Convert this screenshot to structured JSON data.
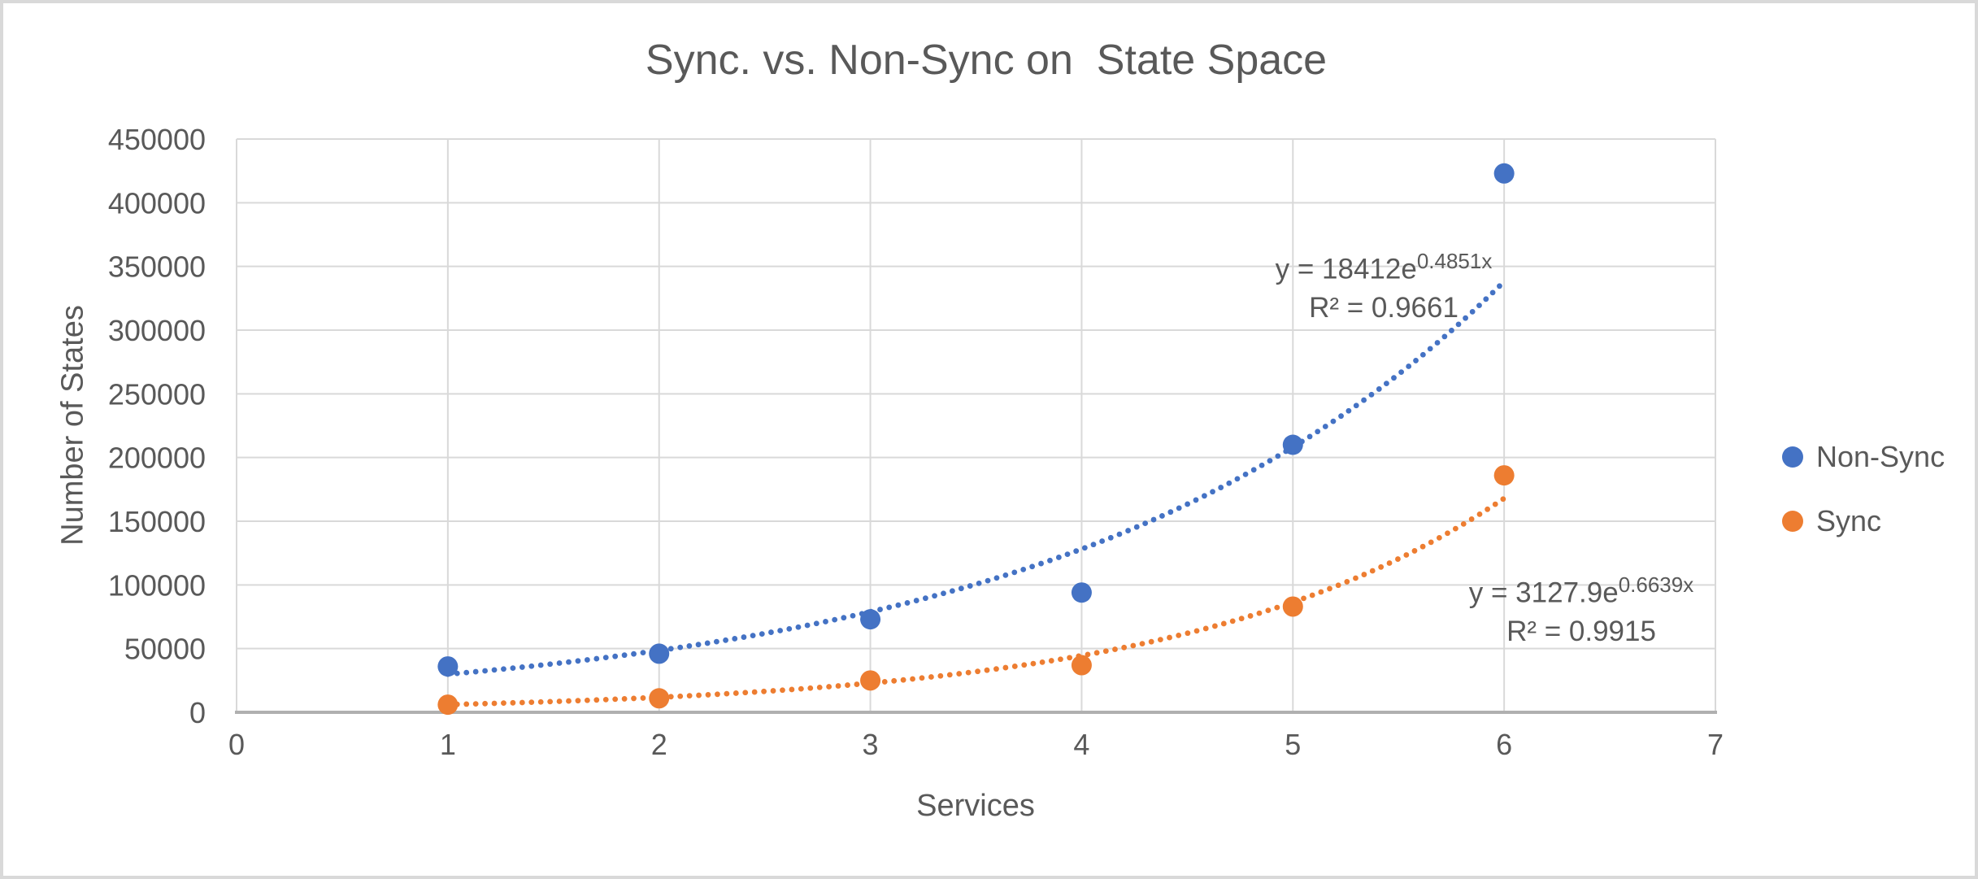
{
  "colors": {
    "gridline": "#d9d9d9",
    "axis_line": "#b0b0b0",
    "text": "#595959",
    "non_sync": "#4472C4",
    "sync": "#ED7D31"
  },
  "chart_data": {
    "type": "scatter",
    "title": "Sync. vs. Non-Sync on  State Space",
    "xlabel": "Services",
    "ylabel": "Number of States",
    "x": [
      1,
      2,
      3,
      4,
      5,
      6
    ],
    "series": [
      {
        "name": "Non-Sync",
        "color": "#4472C4",
        "values": [
          36000,
          46000,
          73000,
          94000,
          210000,
          423000
        ],
        "trendline": {
          "type": "exponential",
          "a": 18412,
          "b": 0.4851,
          "r2": 0.9661,
          "equation_text": "y = 18412e",
          "exponent_text": "0.4851x",
          "r2_text": "R² = 0.9661"
        }
      },
      {
        "name": "Sync",
        "color": "#ED7D31",
        "values": [
          6000,
          11000,
          25000,
          37000,
          83000,
          186000
        ],
        "trendline": {
          "type": "exponential",
          "a": 3127.9,
          "b": 0.6639,
          "r2": 0.9915,
          "equation_text": "y = 3127.9e",
          "exponent_text": "0.6639x",
          "r2_text": "R² = 0.9915"
        }
      }
    ],
    "xlim": [
      0,
      7
    ],
    "ylim": [
      0,
      450000
    ],
    "x_ticks": [
      0,
      1,
      2,
      3,
      4,
      5,
      6,
      7
    ],
    "y_ticks": [
      0,
      50000,
      100000,
      150000,
      200000,
      250000,
      300000,
      350000,
      400000,
      450000
    ],
    "grid": true,
    "legend_position": "right",
    "trendline_x_range": [
      1,
      6
    ]
  }
}
